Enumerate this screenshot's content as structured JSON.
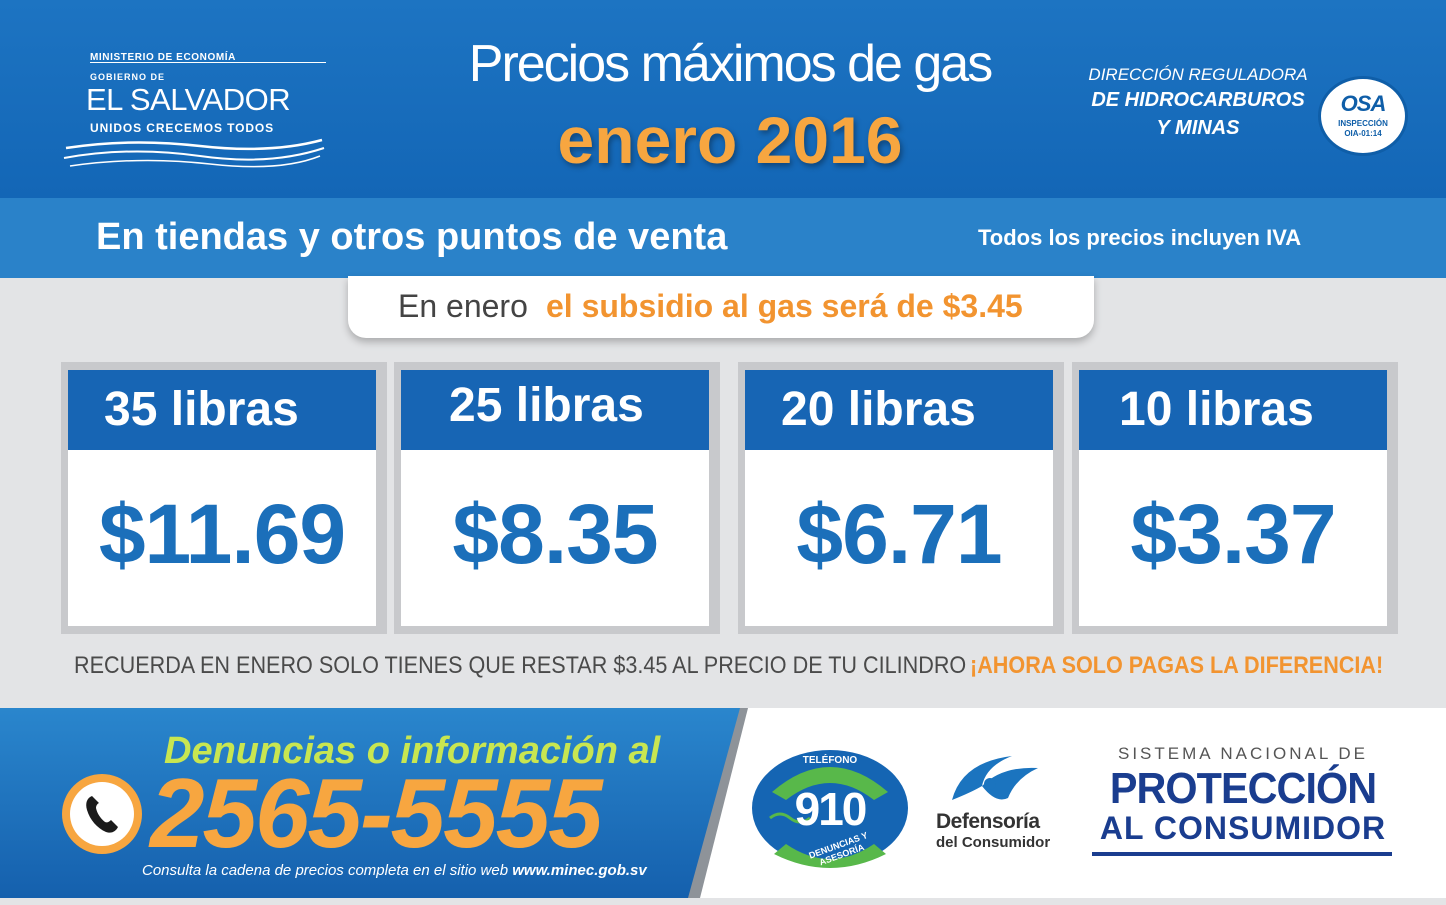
{
  "header": {
    "gov_logo": {
      "ministry": "MINISTERIO DE ECONOMÍA",
      "top": "GOBIERNO DE",
      "name": "EL SALVADOR",
      "slogan": "UNIDOS CRECEMOS TODOS"
    },
    "title": "Precios máximos de gas",
    "subtitle": "enero 2016",
    "agency": {
      "line1": "DIRECCIÓN REGULADORA",
      "line2": "DE HIDROCARBUROS",
      "line3": "Y MINAS"
    },
    "seal": {
      "text": "OSA",
      "sub1": "INSPECCIÓN",
      "sub2": "OIA-01:14"
    }
  },
  "subbar": {
    "title": "En tiendas y otros puntos de venta",
    "iva_note": "Todos los precios incluyen IVA"
  },
  "subsidy": {
    "lead": "En enero",
    "amount_text": "el subsidio al gas será de $3.45"
  },
  "cards": [
    {
      "weight": "35 libras",
      "price": "$11.69"
    },
    {
      "weight": "25 libras",
      "price": "$8.35"
    },
    {
      "weight": "20 libras",
      "price": "$6.71"
    },
    {
      "weight": "10 libras",
      "price": "$3.37"
    }
  ],
  "reminder": {
    "text": "RECUERDA EN ENERO SOLO TIENES QUE RESTAR $3.45 AL PRECIO DE TU CILINDRO",
    "highlight": "¡AHORA SOLO PAGAS LA DIFERENCIA!"
  },
  "footer": {
    "heading": "Denuncias o información al",
    "phone": "2565-5555",
    "note": "Consulta la cadena de precios completa en el sitio web",
    "website": "www.minec.gob.sv",
    "logo_910": {
      "top": "TELÉFONO",
      "number": "910",
      "bottom": "DENUNCIAS Y ASESORÍA"
    },
    "defensoria": {
      "name": "Defensoría",
      "sub": "del Consumidor"
    },
    "proteccion": {
      "top": "SISTEMA NACIONAL DE",
      "main": "PROTECCIÓN",
      "sub": "AL CONSUMIDOR"
    }
  },
  "colors": {
    "header_blue": "#1366b6",
    "accent_orange": "#f7a640",
    "price_blue": "#1b6fba",
    "footer_heading_green": "#c8e651"
  }
}
